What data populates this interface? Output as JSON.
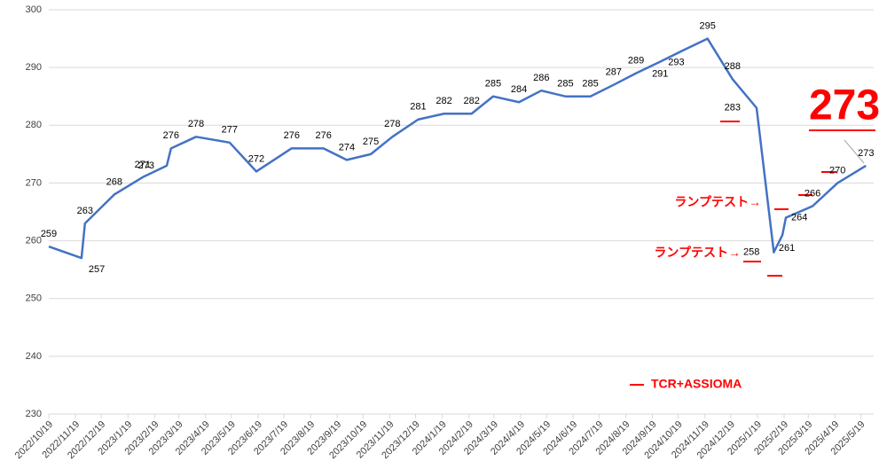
{
  "chart_data": {
    "type": "line",
    "x": [
      "2022/10/19",
      "2022/11/26",
      "2022/11/30",
      "2023/1/3",
      "2023/2/5",
      "2023/3/5",
      "2023/3/10",
      "2023/4/8",
      "2023/5/17",
      "2023/6/17",
      "2023/7/28",
      "2023/9/3",
      "2023/9/30",
      "2023/10/28",
      "2023/11/22",
      "2023/12/22",
      "2024/1/21",
      "2024/2/22",
      "2024/3/18",
      "2024/4/17",
      "2024/5/13",
      "2024/6/10",
      "2024/7/9",
      "2024/8/5",
      "2024/8/31",
      "2024/9/28",
      "2024/10/25",
      "2024/11/22",
      "2024/12/21",
      "2025/1/18",
      "2025/2/7",
      "2025/2/17",
      "2025/2/21",
      "2025/3/24",
      "2025/4/22",
      "2025/5/25"
    ],
    "series": [
      {
        "name": "TCR+ASSIOMA",
        "color": "#4472c4",
        "values": [
          259,
          257,
          263,
          268,
          271,
          273,
          276,
          278,
          277,
          272,
          276,
          276,
          274,
          275,
          278,
          281,
          282,
          282,
          285,
          284,
          286,
          285,
          285,
          287,
          289,
          291,
          293,
          295,
          288,
          283,
          258,
          261,
          264,
          266,
          270,
          273
        ]
      }
    ],
    "legend_color": "#ff0000",
    "xlim": [
      "2022/10/19",
      "2025/6/3"
    ],
    "xticks": [
      "2022/10/19",
      "2022/11/19",
      "2022/12/19",
      "2023/1/19",
      "2023/2/19",
      "2023/3/19",
      "2023/4/19",
      "2023/5/19",
      "2023/6/19",
      "2023/7/19",
      "2023/8/19",
      "2023/9/19",
      "2023/10/19",
      "2023/11/19",
      "2023/12/19",
      "2024/1/19",
      "2024/2/19",
      "2024/3/19",
      "2024/4/19",
      "2024/5/19",
      "2024/6/19",
      "2024/7/19",
      "2024/8/19",
      "2024/9/19",
      "2024/10/19",
      "2024/11/19",
      "2024/12/19",
      "2025/1/19",
      "2025/2/19",
      "2025/3/19",
      "2025/4/19",
      "2025/5/19"
    ],
    "ylim": [
      230,
      300
    ],
    "yticks": [
      230,
      240,
      250,
      260,
      270,
      280,
      290,
      300
    ],
    "grid": true,
    "annotations": [
      "ランプテスト→",
      "ランプテスト→",
      "273"
    ]
  }
}
